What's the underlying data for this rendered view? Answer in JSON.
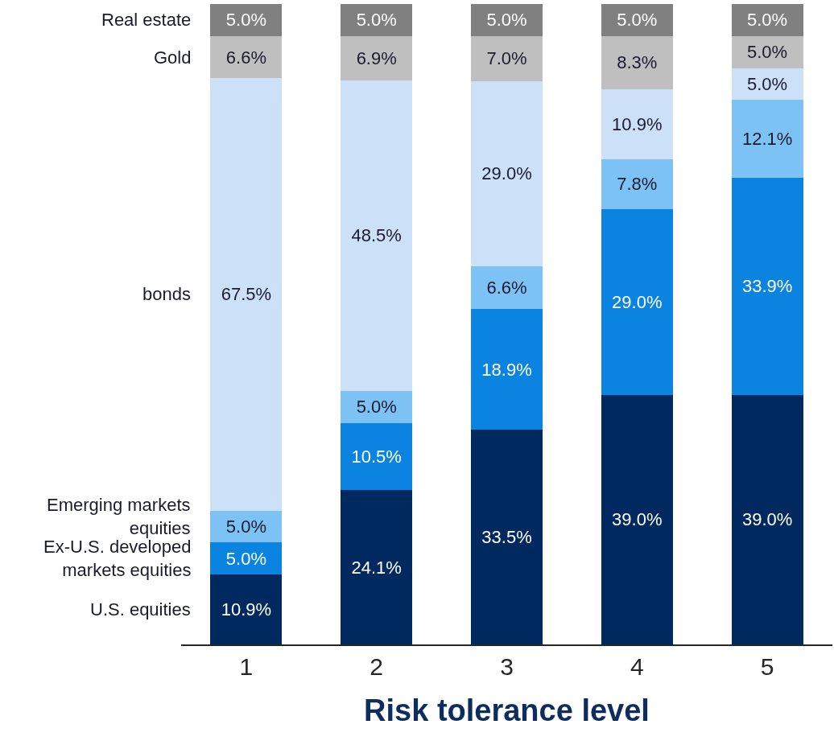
{
  "chart_data": {
    "type": "bar",
    "stacked": true,
    "xlabel": "Risk tolerance level",
    "categories": [
      "1",
      "2",
      "3",
      "4",
      "5"
    ],
    "series": [
      {
        "name": "U.S. equities",
        "color": "#002960",
        "values": [
          10.9,
          24.1,
          33.5,
          39.0,
          39.0
        ],
        "value_labels": [
          "10.9%",
          "24.1%",
          "33.5%",
          "39.0%",
          "39.0%"
        ]
      },
      {
        "name": "Ex-U.S. developed markets equities",
        "color": "#0a84e0",
        "values": [
          5.0,
          10.5,
          18.9,
          29.0,
          33.9
        ],
        "value_labels": [
          "5.0%",
          "10.5%",
          "18.9%",
          "29.0%",
          "33.9%"
        ]
      },
      {
        "name": "Emerging markets equities",
        "color": "#7dc2f5",
        "values": [
          5.0,
          5.0,
          6.6,
          7.8,
          12.1
        ],
        "value_labels": [
          "5.0%",
          "5.0%",
          "6.6%",
          "7.8%",
          "12.1%"
        ]
      },
      {
        "name": "bonds",
        "color": "#cce0f8",
        "values": [
          67.5,
          48.5,
          29.0,
          10.9,
          5.0
        ],
        "value_labels": [
          "67.5%",
          "48.5%",
          "29.0%",
          "10.9%",
          "5.0%"
        ]
      },
      {
        "name": "Gold",
        "color": "#bfbfbf",
        "values": [
          6.6,
          6.9,
          7.0,
          8.3,
          5.0
        ],
        "value_labels": [
          "6.6%",
          "6.9%",
          "7.0%",
          "8.3%",
          "5.0%"
        ]
      },
      {
        "name": "Real estate",
        "color": "#808080",
        "values": [
          5.0,
          5.0,
          5.0,
          5.0,
          5.0
        ],
        "value_labels": [
          "5.0%",
          "5.0%",
          "5.0%",
          "5.0%",
          "5.0%"
        ]
      }
    ],
    "legend": false,
    "tick_labels": "x"
  }
}
